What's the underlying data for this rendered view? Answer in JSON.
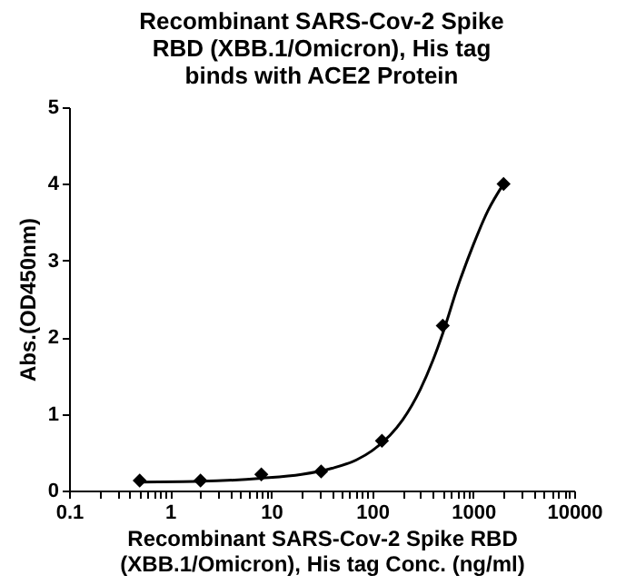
{
  "chart_data": {
    "type": "scatter",
    "title": "Recombinant SARS-Cov-2 Spike RBD (XBB.1/Omicron), His tag binds with ACE2 Protein",
    "xlabel": "Recombinant SARS-Cov-2 Spike RBD (XBB.1/Omicron), His tag Conc. (ng/ml)",
    "ylabel": "Abs.(OD450nm)",
    "log": "x",
    "grid": false,
    "marker": "diamond",
    "xlim": [
      0.1,
      10000
    ],
    "ylim": [
      0,
      5
    ],
    "yticks": [
      0,
      1,
      2,
      3,
      4,
      5
    ],
    "xticks": [
      "0.1",
      {
        "value": 0.2,
        "label": null
      },
      {
        "value": 0.3,
        "label": null
      },
      {
        "value": 0.4,
        "label": null
      },
      {
        "value": 0.5,
        "label": null
      },
      {
        "value": 0.6,
        "label": null
      },
      {
        "value": 0.7,
        "label": null
      },
      {
        "value": 0.8,
        "label": null
      },
      {
        "value": 0.9,
        "label": null
      },
      1,
      {
        "value": 2,
        "label": null
      },
      {
        "value": 3,
        "label": null
      },
      {
        "value": 4,
        "label": null
      },
      {
        "value": 5,
        "label": null
      },
      {
        "value": 6,
        "label": null
      },
      {
        "value": 7,
        "label": null
      },
      {
        "value": 8,
        "label": null
      },
      {
        "value": 9,
        "label": null
      },
      10,
      {
        "value": 20,
        "label": null
      },
      {
        "value": 30,
        "label": null
      },
      {
        "value": 40,
        "label": null
      },
      {
        "value": 50,
        "label": null
      },
      {
        "value": 60,
        "label": null
      },
      {
        "value": 70,
        "label": null
      },
      {
        "value": 80,
        "label": null
      },
      {
        "value": 90,
        "label": null
      },
      100,
      {
        "value": 200,
        "label": null
      },
      {
        "value": 300,
        "label": null
      },
      {
        "value": 400,
        "label": null
      },
      {
        "value": 500,
        "label": null
      },
      {
        "value": 600,
        "label": null
      },
      {
        "value": 700,
        "label": null
      },
      {
        "value": 800,
        "label": null
      },
      {
        "value": 900,
        "label": null
      },
      1000,
      {
        "value": 2000,
        "label": null
      },
      {
        "value": 3000,
        "label": null
      },
      {
        "value": 4000,
        "label": null
      },
      {
        "value": 5000,
        "label": null
      },
      {
        "value": 6000,
        "label": null
      },
      {
        "value": 7000,
        "label": null
      },
      {
        "value": 8000,
        "label": null
      },
      {
        "value": 9000,
        "label": null
      },
      10000
    ],
    "series": [
      {
        "color": "#000000",
        "x": [
          0.5,
          2,
          8,
          31.25,
          125,
          500,
          2000
        ],
        "values": [
          0.13,
          0.13,
          0.21,
          0.25,
          0.65,
          2.15,
          4.0
        ]
      },
      {
        "type": "line",
        "color": "#000000",
        "marker": "none",
        "line_style": "solid",
        "x": [
          0.5,
          2,
          8,
          20,
          40,
          70,
          100,
          150,
          200,
          300,
          400,
          500,
          700,
          1000,
          1400,
          2000
        ],
        "values": [
          0.11,
          0.12,
          0.16,
          0.21,
          0.29,
          0.4,
          0.52,
          0.72,
          0.92,
          1.32,
          1.7,
          2.05,
          2.65,
          3.2,
          3.65,
          4.0
        ]
      }
    ]
  }
}
